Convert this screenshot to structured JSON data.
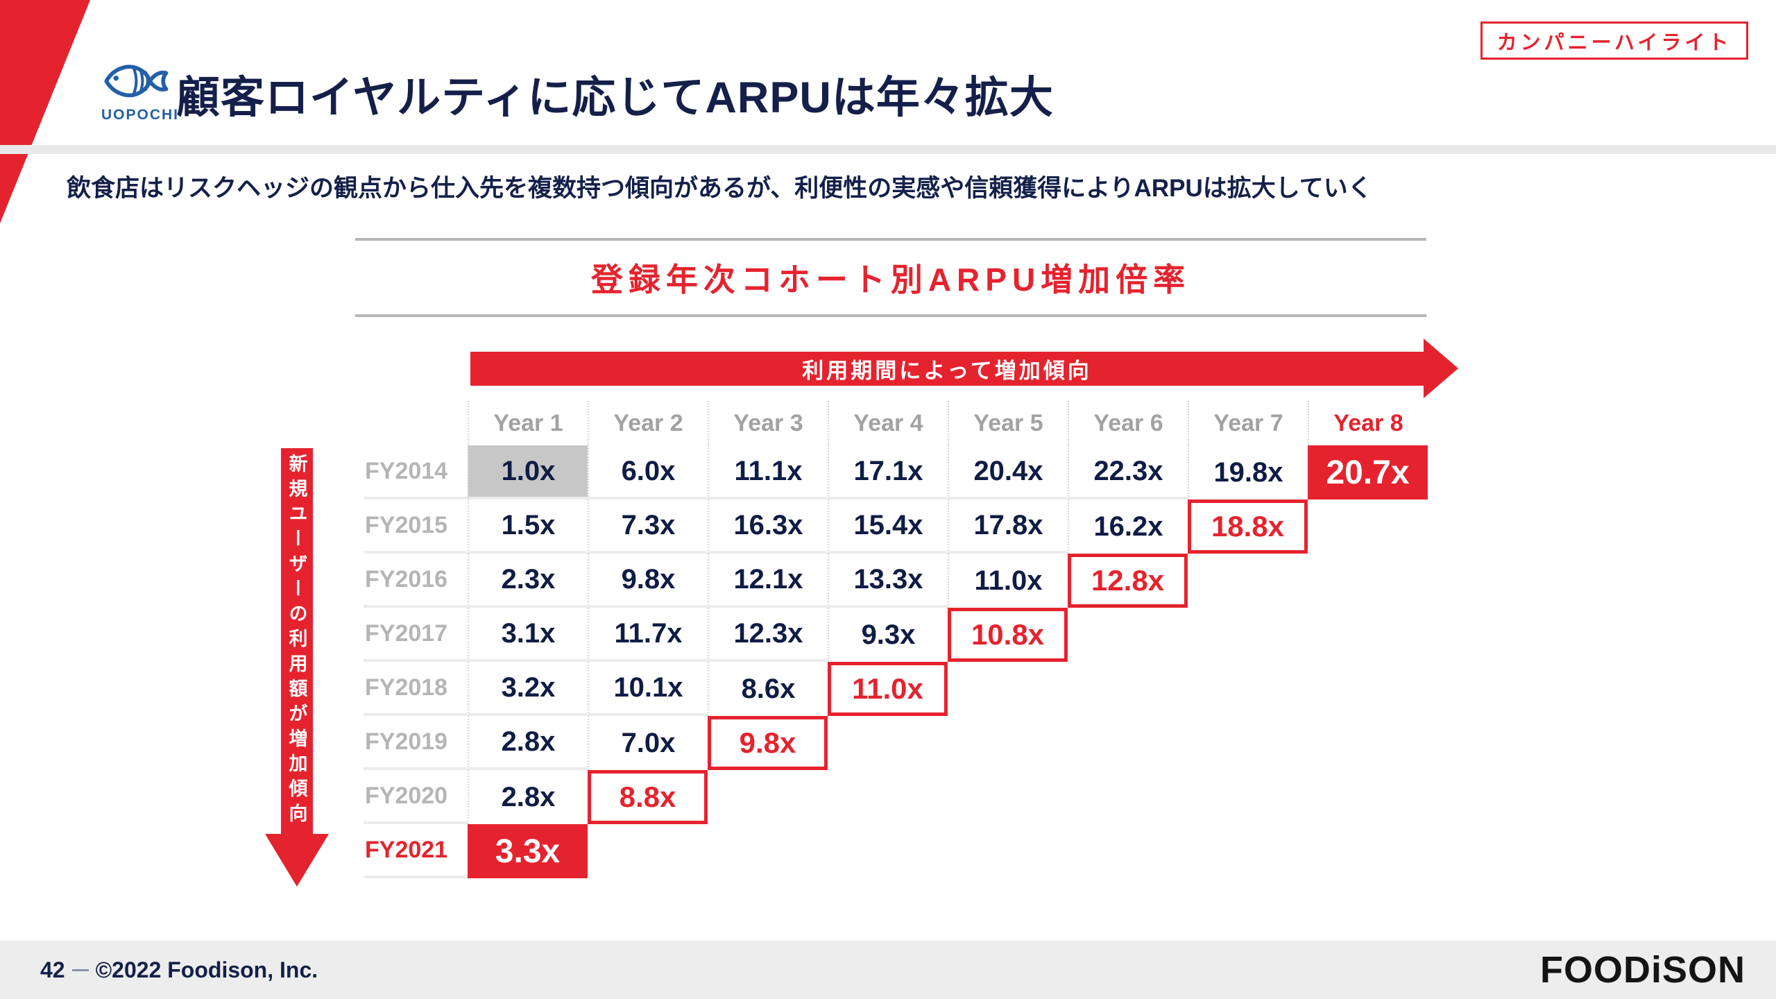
{
  "slide": {
    "badge": "カンパニーハイライト",
    "logo_text": "UOPOCHI",
    "title": "顧客ロイヤルティに応じてARPUは年々拡大",
    "subtitle": "飲食店はリスクヘッジの観点から仕入先を複数持つ傾向があるが、利便性の実感や信頼獲得によりARPUは拡大していく"
  },
  "chart_data": {
    "type": "table",
    "title": "登録年次コホート別ARPU増加倍率",
    "top_axis_annotation": "利用期間によって増加傾向",
    "left_axis_annotation": "新規ユーザーの利用額が増加傾向",
    "columns": [
      {
        "label": "Year 1"
      },
      {
        "label": "Year 2"
      },
      {
        "label": "Year 3"
      },
      {
        "label": "Year 4"
      },
      {
        "label": "Year 5"
      },
      {
        "label": "Year 6"
      },
      {
        "label": "Year 7"
      },
      {
        "label": "Year 8",
        "accent": true
      }
    ],
    "rows": [
      {
        "label": "FY2014",
        "cells": [
          {
            "v": "1.0x",
            "s": "muted-fill"
          },
          {
            "v": "6.0x"
          },
          {
            "v": "11.1x"
          },
          {
            "v": "17.1x"
          },
          {
            "v": "20.4x"
          },
          {
            "v": "22.3x"
          },
          {
            "v": "19.8x"
          },
          {
            "v": "20.7x",
            "s": "accent-fill"
          }
        ]
      },
      {
        "label": "FY2015",
        "cells": [
          {
            "v": "1.5x"
          },
          {
            "v": "7.3x"
          },
          {
            "v": "16.3x"
          },
          {
            "v": "15.4x"
          },
          {
            "v": "17.8x"
          },
          {
            "v": "16.2x"
          },
          {
            "v": "18.8x",
            "s": "accent-box"
          }
        ]
      },
      {
        "label": "FY2016",
        "cells": [
          {
            "v": "2.3x"
          },
          {
            "v": "9.8x"
          },
          {
            "v": "12.1x"
          },
          {
            "v": "13.3x"
          },
          {
            "v": "11.0x"
          },
          {
            "v": "12.8x",
            "s": "accent-box"
          }
        ]
      },
      {
        "label": "FY2017",
        "cells": [
          {
            "v": "3.1x"
          },
          {
            "v": "11.7x"
          },
          {
            "v": "12.3x"
          },
          {
            "v": "9.3x"
          },
          {
            "v": "10.8x",
            "s": "accent-box"
          }
        ]
      },
      {
        "label": "FY2018",
        "cells": [
          {
            "v": "3.2x"
          },
          {
            "v": "10.1x"
          },
          {
            "v": "8.6x"
          },
          {
            "v": "11.0x",
            "s": "accent-box"
          }
        ]
      },
      {
        "label": "FY2019",
        "cells": [
          {
            "v": "2.8x"
          },
          {
            "v": "7.0x"
          },
          {
            "v": "9.8x",
            "s": "accent-box"
          }
        ]
      },
      {
        "label": "FY2020",
        "cells": [
          {
            "v": "2.8x"
          },
          {
            "v": "8.8x",
            "s": "accent-box"
          }
        ]
      },
      {
        "label": "FY2021",
        "accent": true,
        "cells": [
          {
            "v": "3.3x",
            "s": "accent-fill"
          }
        ]
      }
    ]
  },
  "footer": {
    "page": "42",
    "copyright": "©2022 Foodison, Inc.",
    "brand": "FOODiSON"
  },
  "colors": {
    "accent_red": "#e5232e",
    "navy": "#14204a",
    "fish_blue": "#235fa8",
    "muted_cell_gray": "#c7c7c7"
  }
}
